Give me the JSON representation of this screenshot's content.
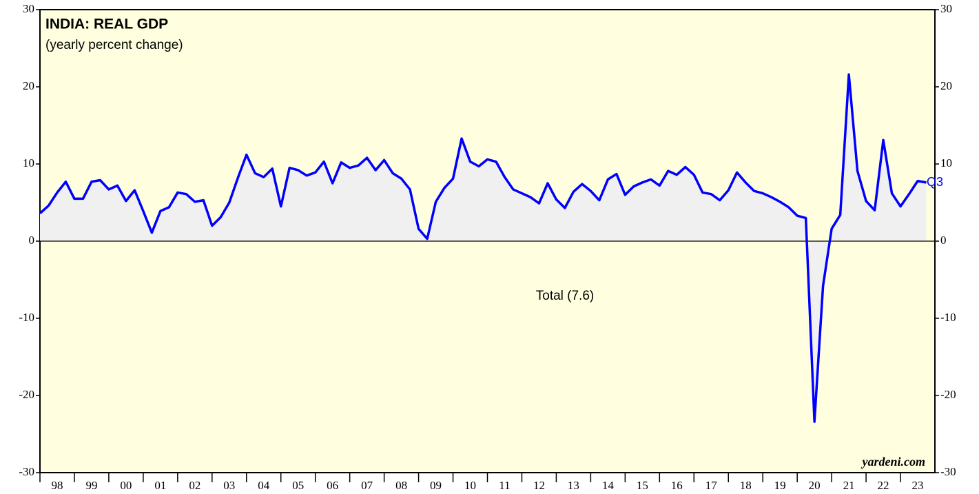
{
  "chart_data": {
    "type": "line",
    "title": "INDIA: REAL GDP",
    "subtitle": "(yearly percent change)",
    "annotations": [
      "Total (7.6)",
      "Q3"
    ],
    "credit": "yardeni.com",
    "x": [
      1998,
      1998.25,
      1998.5,
      1998.75,
      1999,
      1999.25,
      1999.5,
      1999.75,
      2000,
      2000.25,
      2000.5,
      2000.75,
      2001,
      2001.25,
      2001.5,
      2001.75,
      2002,
      2002.25,
      2002.5,
      2002.75,
      2003,
      2003.25,
      2003.5,
      2003.75,
      2004,
      2004.25,
      2004.5,
      2004.75,
      2005,
      2005.25,
      2005.5,
      2005.75,
      2006,
      2006.25,
      2006.5,
      2006.75,
      2007,
      2007.25,
      2007.5,
      2007.75,
      2008,
      2008.25,
      2008.5,
      2008.75,
      2009,
      2009.25,
      2009.5,
      2009.75,
      2010,
      2010.25,
      2010.5,
      2010.75,
      2011,
      2011.25,
      2011.5,
      2011.75,
      2012,
      2012.25,
      2012.5,
      2012.75,
      2013,
      2013.25,
      2013.5,
      2013.75,
      2014,
      2014.25,
      2014.5,
      2014.75,
      2015,
      2015.25,
      2015.5,
      2015.75,
      2016,
      2016.25,
      2016.5,
      2016.75,
      2017,
      2017.25,
      2017.5,
      2017.75,
      2018,
      2018.25,
      2018.5,
      2018.75,
      2019,
      2019.25,
      2019.5,
      2019.75,
      2020,
      2020.25,
      2020.5,
      2020.75,
      2021,
      2021.25,
      2021.5,
      2021.75,
      2022,
      2022.25,
      2022.5,
      2022.75,
      2023,
      2023.25,
      2023.5,
      2023.75
    ],
    "series": [
      {
        "name": "Total",
        "color": "#0000ff",
        "area_color": "#f0f0f0",
        "values": [
          3.6,
          4.6,
          6.3,
          7.7,
          5.5,
          5.5,
          7.7,
          7.9,
          6.7,
          7.2,
          5.2,
          6.6,
          3.9,
          1.1,
          3.9,
          4.4,
          6.3,
          6.1,
          5.1,
          5.3,
          2.0,
          3.1,
          5.0,
          8.2,
          11.2,
          8.8,
          8.3,
          9.4,
          4.5,
          9.5,
          9.2,
          8.5,
          8.9,
          10.3,
          7.5,
          10.2,
          9.5,
          9.8,
          10.8,
          9.2,
          10.5,
          8.8,
          8.1,
          6.7,
          1.6,
          0.3,
          5.1,
          6.9,
          8.1,
          13.3,
          10.3,
          9.7,
          10.6,
          10.3,
          8.3,
          6.7,
          6.2,
          5.7,
          4.9,
          7.5,
          5.4,
          4.3,
          6.4,
          7.4,
          6.5,
          5.3,
          8.0,
          8.7,
          6.0,
          7.1,
          7.6,
          8.0,
          7.2,
          9.1,
          8.6,
          9.6,
          8.6,
          6.3,
          6.1,
          5.3,
          6.6,
          8.9,
          7.6,
          6.5,
          6.2,
          5.7,
          5.1,
          4.4,
          3.3,
          3.0,
          -23.4,
          -5.8,
          1.6,
          3.4,
          21.6,
          9.1,
          5.2,
          4.0,
          13.1,
          6.2,
          4.5,
          6.1,
          7.8,
          7.6
        ]
      }
    ],
    "xlim": [
      1998,
      2024
    ],
    "xticks": [
      {
        "value": 1998,
        "label": "98"
      },
      {
        "value": 1999,
        "label": "99"
      },
      {
        "value": 2000,
        "label": "00"
      },
      {
        "value": 2001,
        "label": "01"
      },
      {
        "value": 2002,
        "label": "02"
      },
      {
        "value": 2003,
        "label": "03"
      },
      {
        "value": 2004,
        "label": "04"
      },
      {
        "value": 2005,
        "label": "05"
      },
      {
        "value": 2006,
        "label": "06"
      },
      {
        "value": 2007,
        "label": "07"
      },
      {
        "value": 2008,
        "label": "08"
      },
      {
        "value": 2009,
        "label": "09"
      },
      {
        "value": 2010,
        "label": "10"
      },
      {
        "value": 2011,
        "label": "11"
      },
      {
        "value": 2012,
        "label": "12"
      },
      {
        "value": 2013,
        "label": "13"
      },
      {
        "value": 2014,
        "label": "14"
      },
      {
        "value": 2015,
        "label": "15"
      },
      {
        "value": 2016,
        "label": "16"
      },
      {
        "value": 2017,
        "label": "17"
      },
      {
        "value": 2018,
        "label": "18"
      },
      {
        "value": 2019,
        "label": "19"
      },
      {
        "value": 2020,
        "label": "20"
      },
      {
        "value": 2021,
        "label": "21"
      },
      {
        "value": 2022,
        "label": "22"
      },
      {
        "value": 2023,
        "label": "23"
      }
    ],
    "ylim": [
      -30,
      30
    ],
    "yticks": [
      -30,
      -20,
      -10,
      0,
      10,
      20,
      30
    ],
    "background": "#ffffe0"
  }
}
